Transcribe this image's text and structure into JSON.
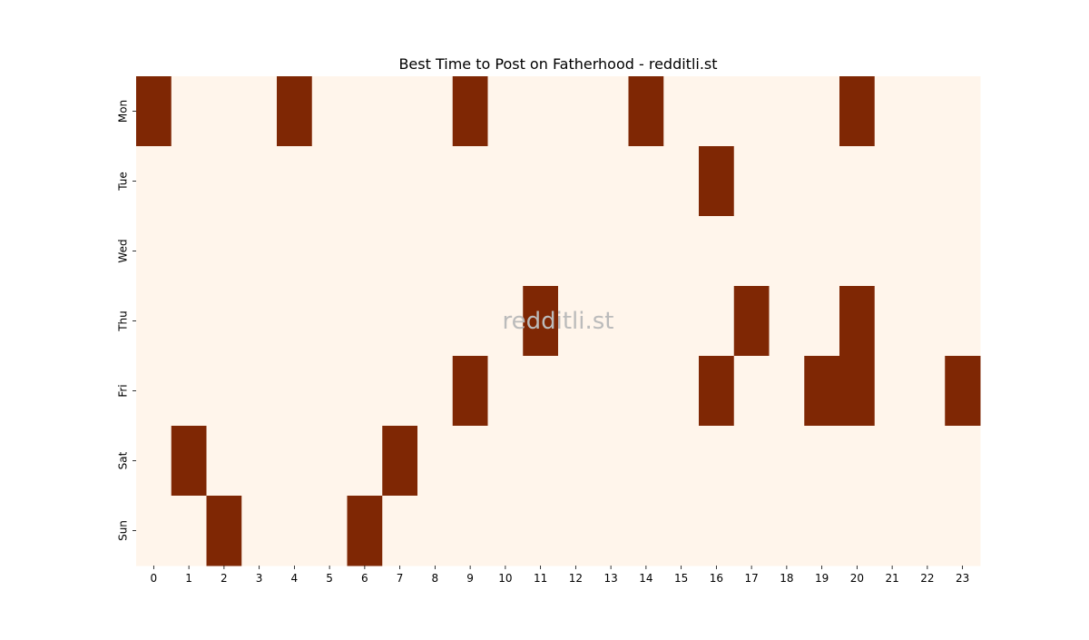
{
  "chart_data": {
    "type": "heatmap",
    "title": "Best Time to Post on Fatherhood - redditli.st",
    "watermark": "redditli.st",
    "xlabel": "",
    "ylabel": "",
    "x_ticks": [
      "0",
      "1",
      "2",
      "3",
      "4",
      "5",
      "6",
      "7",
      "8",
      "9",
      "10",
      "11",
      "12",
      "13",
      "14",
      "15",
      "16",
      "17",
      "18",
      "19",
      "20",
      "21",
      "22",
      "23"
    ],
    "y_ticks": [
      "Mon",
      "Tue",
      "Wed",
      "Thu",
      "Fri",
      "Sat",
      "Sun"
    ],
    "colors": {
      "low": "#fff5eb",
      "high": "#7f2704"
    },
    "grid": false,
    "colorbar": false,
    "values": [
      [
        1,
        0,
        0,
        0,
        1,
        0,
        0,
        0,
        0,
        1,
        0,
        0,
        0,
        0,
        1,
        0,
        0,
        0,
        0,
        0,
        1,
        0,
        0,
        0
      ],
      [
        0,
        0,
        0,
        0,
        0,
        0,
        0,
        0,
        0,
        0,
        0,
        0,
        0,
        0,
        0,
        0,
        1,
        0,
        0,
        0,
        0,
        0,
        0,
        0
      ],
      [
        0,
        0,
        0,
        0,
        0,
        0,
        0,
        0,
        0,
        0,
        0,
        0,
        0,
        0,
        0,
        0,
        0,
        0,
        0,
        0,
        0,
        0,
        0,
        0
      ],
      [
        0,
        0,
        0,
        0,
        0,
        0,
        0,
        0,
        0,
        0,
        0,
        1,
        0,
        0,
        0,
        0,
        0,
        1,
        0,
        0,
        1,
        0,
        0,
        0
      ],
      [
        0,
        0,
        0,
        0,
        0,
        0,
        0,
        0,
        0,
        1,
        0,
        0,
        0,
        0,
        0,
        0,
        1,
        0,
        0,
        1,
        1,
        0,
        0,
        1
      ],
      [
        0,
        1,
        0,
        0,
        0,
        0,
        0,
        1,
        0,
        0,
        0,
        0,
        0,
        0,
        0,
        0,
        0,
        0,
        0,
        0,
        0,
        0,
        0,
        0
      ],
      [
        0,
        0,
        1,
        0,
        0,
        0,
        1,
        0,
        0,
        0,
        0,
        0,
        0,
        0,
        0,
        0,
        0,
        0,
        0,
        0,
        0,
        0,
        0,
        0
      ]
    ]
  }
}
